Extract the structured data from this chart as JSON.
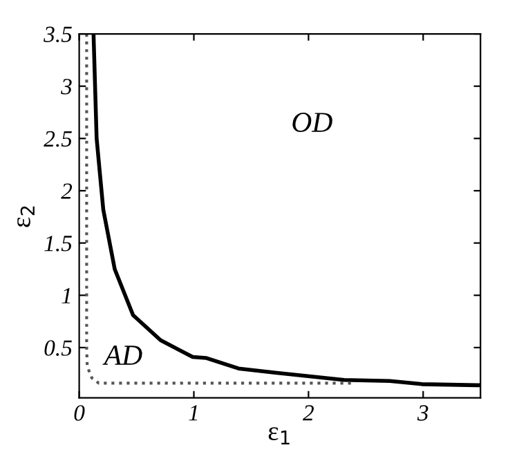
{
  "chart_data": {
    "type": "line",
    "xlabel": "ε$_{1}$",
    "ylabel": "ε$_{2}$",
    "xlim": [
      0,
      3.5
    ],
    "ylim": [
      0.02,
      3.5
    ],
    "xticks": [
      0,
      1,
      2,
      3
    ],
    "yticks": [
      0.5,
      1,
      1.5,
      2,
      2.5,
      3,
      3.5
    ],
    "grid": false,
    "marker": "none",
    "series": [
      {
        "color": "#000000",
        "line_style": "solid",
        "x": [
          0.125,
          0.152,
          0.21,
          0.31,
          0.47,
          0.71,
          0.99,
          1.11,
          1.39,
          1.71,
          2.31,
          2.71,
          2.99,
          3.47,
          3.5
        ],
        "values": [
          3.5,
          2.5,
          1.82,
          1.25,
          0.81,
          0.57,
          0.41,
          0.4,
          0.3,
          0.26,
          0.19,
          0.18,
          0.15,
          0.14,
          0.14
        ]
      },
      {
        "color": "#555555",
        "line_style": "dotted",
        "x": [
          0.065,
          0.065,
          0.07,
          0.11,
          0.17,
          2.37
        ],
        "values": [
          3.5,
          0.5,
          0.32,
          0.21,
          0.16,
          0.16
        ]
      }
    ],
    "annotations": [
      "OD",
      "AD"
    ]
  }
}
